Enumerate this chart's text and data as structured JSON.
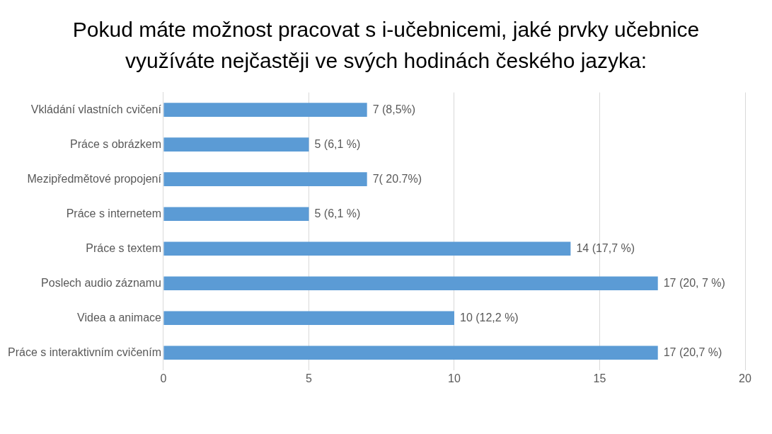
{
  "chart_data": {
    "type": "bar",
    "orientation": "horizontal",
    "title": "Pokud máte možnost pracovat s i-učebnicemi, jaké prvky učebnice využíváte nejčastěji ve svých hodinách českého jazyka:",
    "categories": [
      "Vkládání vlastních cvičení",
      "Práce s obrázkem",
      "Mezipředmětové propojení",
      "Práce s internetem",
      "Práce s textem",
      "Poslech audio záznamu",
      "Videa a animace",
      "Práce s interaktivním cvičením"
    ],
    "values": [
      7,
      5,
      7,
      5,
      14,
      17,
      10,
      17
    ],
    "value_labels": [
      "7 (8,5%)",
      "5 (6,1 %)",
      "7( 20.7%)",
      "5 (6,1 %)",
      "14 (17,7 %)",
      "17 (20, 7 %)",
      "10 (12,2 %)",
      "17 (20,7 %)"
    ],
    "color": "#5b9bd5",
    "xlim": [
      0,
      20
    ],
    "xticks": [
      0,
      5,
      10,
      15,
      20
    ],
    "grid": "x"
  }
}
